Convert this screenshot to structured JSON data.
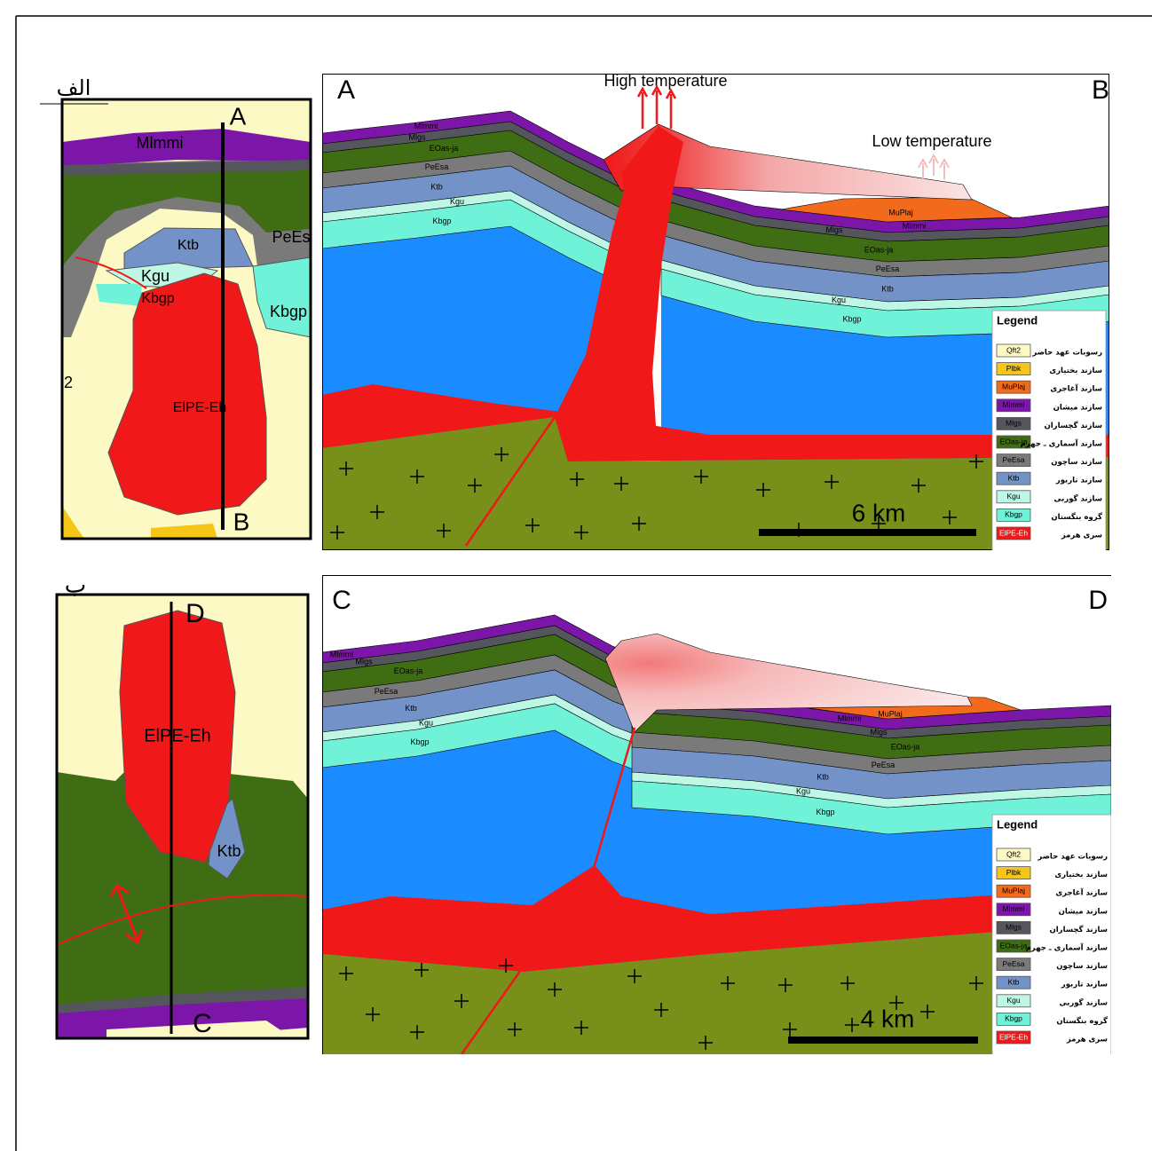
{
  "panel_a": {
    "label": "الف",
    "map": {
      "labels": [
        "A",
        "Mlmmi",
        "Ktb",
        "PeEs",
        "Kgu",
        "Kbgp",
        "Kbgp",
        "2",
        "ElPE-Eh",
        "B"
      ]
    },
    "section": {
      "start": "A",
      "end": "B",
      "high_temperature": "High temperature",
      "low_temperature": "Low temperature",
      "layer_labels_left": [
        "Mlmmi",
        "Mlgs",
        "EOas-ja",
        "PeEsa",
        "Ktb",
        "Kgu",
        "Kbgp"
      ],
      "layer_labels_right": [
        "MuPlaj",
        "Mlmmi",
        "Mlgs",
        "EOas-ja",
        "PeEsa",
        "Ktb",
        "Kgu",
        "Kbgp"
      ],
      "scale": "6 km"
    }
  },
  "panel_b": {
    "label": "ب",
    "map": {
      "labels": [
        "D",
        "ElPE-Eh",
        "Ktb",
        "C"
      ]
    },
    "section": {
      "start": "C",
      "end": "D",
      "layer_labels_left": [
        "Mlmmi",
        "Mlgs",
        "EOas-ja",
        "PeEsa",
        "Ktb",
        "Kgu",
        "Kbgp"
      ],
      "layer_labels_right": [
        "MuPlaj",
        "Mlmmi",
        "Mlgs",
        "EOas-ja",
        "PeEsa",
        "Ktb",
        "Kgu",
        "Kbgp"
      ],
      "scale": "4 km"
    }
  },
  "legend": {
    "title": "Legend",
    "entries": [
      {
        "code": "Qft2",
        "name": "رسوبات عهد حاضر",
        "color": "#fdf9c4"
      },
      {
        "code": "Plbk",
        "name": "سازند بختیاری",
        "color": "#f5c518"
      },
      {
        "code": "MuPlaj",
        "name": "سازند آغاجری",
        "color": "#f26b1d"
      },
      {
        "code": "Mlmmi",
        "name": "سازند میشان",
        "color": "#7b16a8"
      },
      {
        "code": "Mlgs",
        "name": "سازند گچساران",
        "color": "#55555e"
      },
      {
        "code": "EOas-ja",
        "name": "سازند آسماری ـ جهرم",
        "color": "#3f6d14"
      },
      {
        "code": "PeEsa",
        "name": "سازند ساچون",
        "color": "#7a7a7a"
      },
      {
        "code": "Ktb",
        "name": "سازند تاربور",
        "color": "#7393c8"
      },
      {
        "code": "Kgu",
        "name": "سازند گوربی",
        "color": "#bff7e6"
      },
      {
        "code": "Kbgp",
        "name": "گروه بنگستان",
        "color": "#6ff2d8"
      },
      {
        "code": "ElPE-Eh",
        "name": "سری هرمز",
        "color": "#f01818"
      }
    ]
  }
}
